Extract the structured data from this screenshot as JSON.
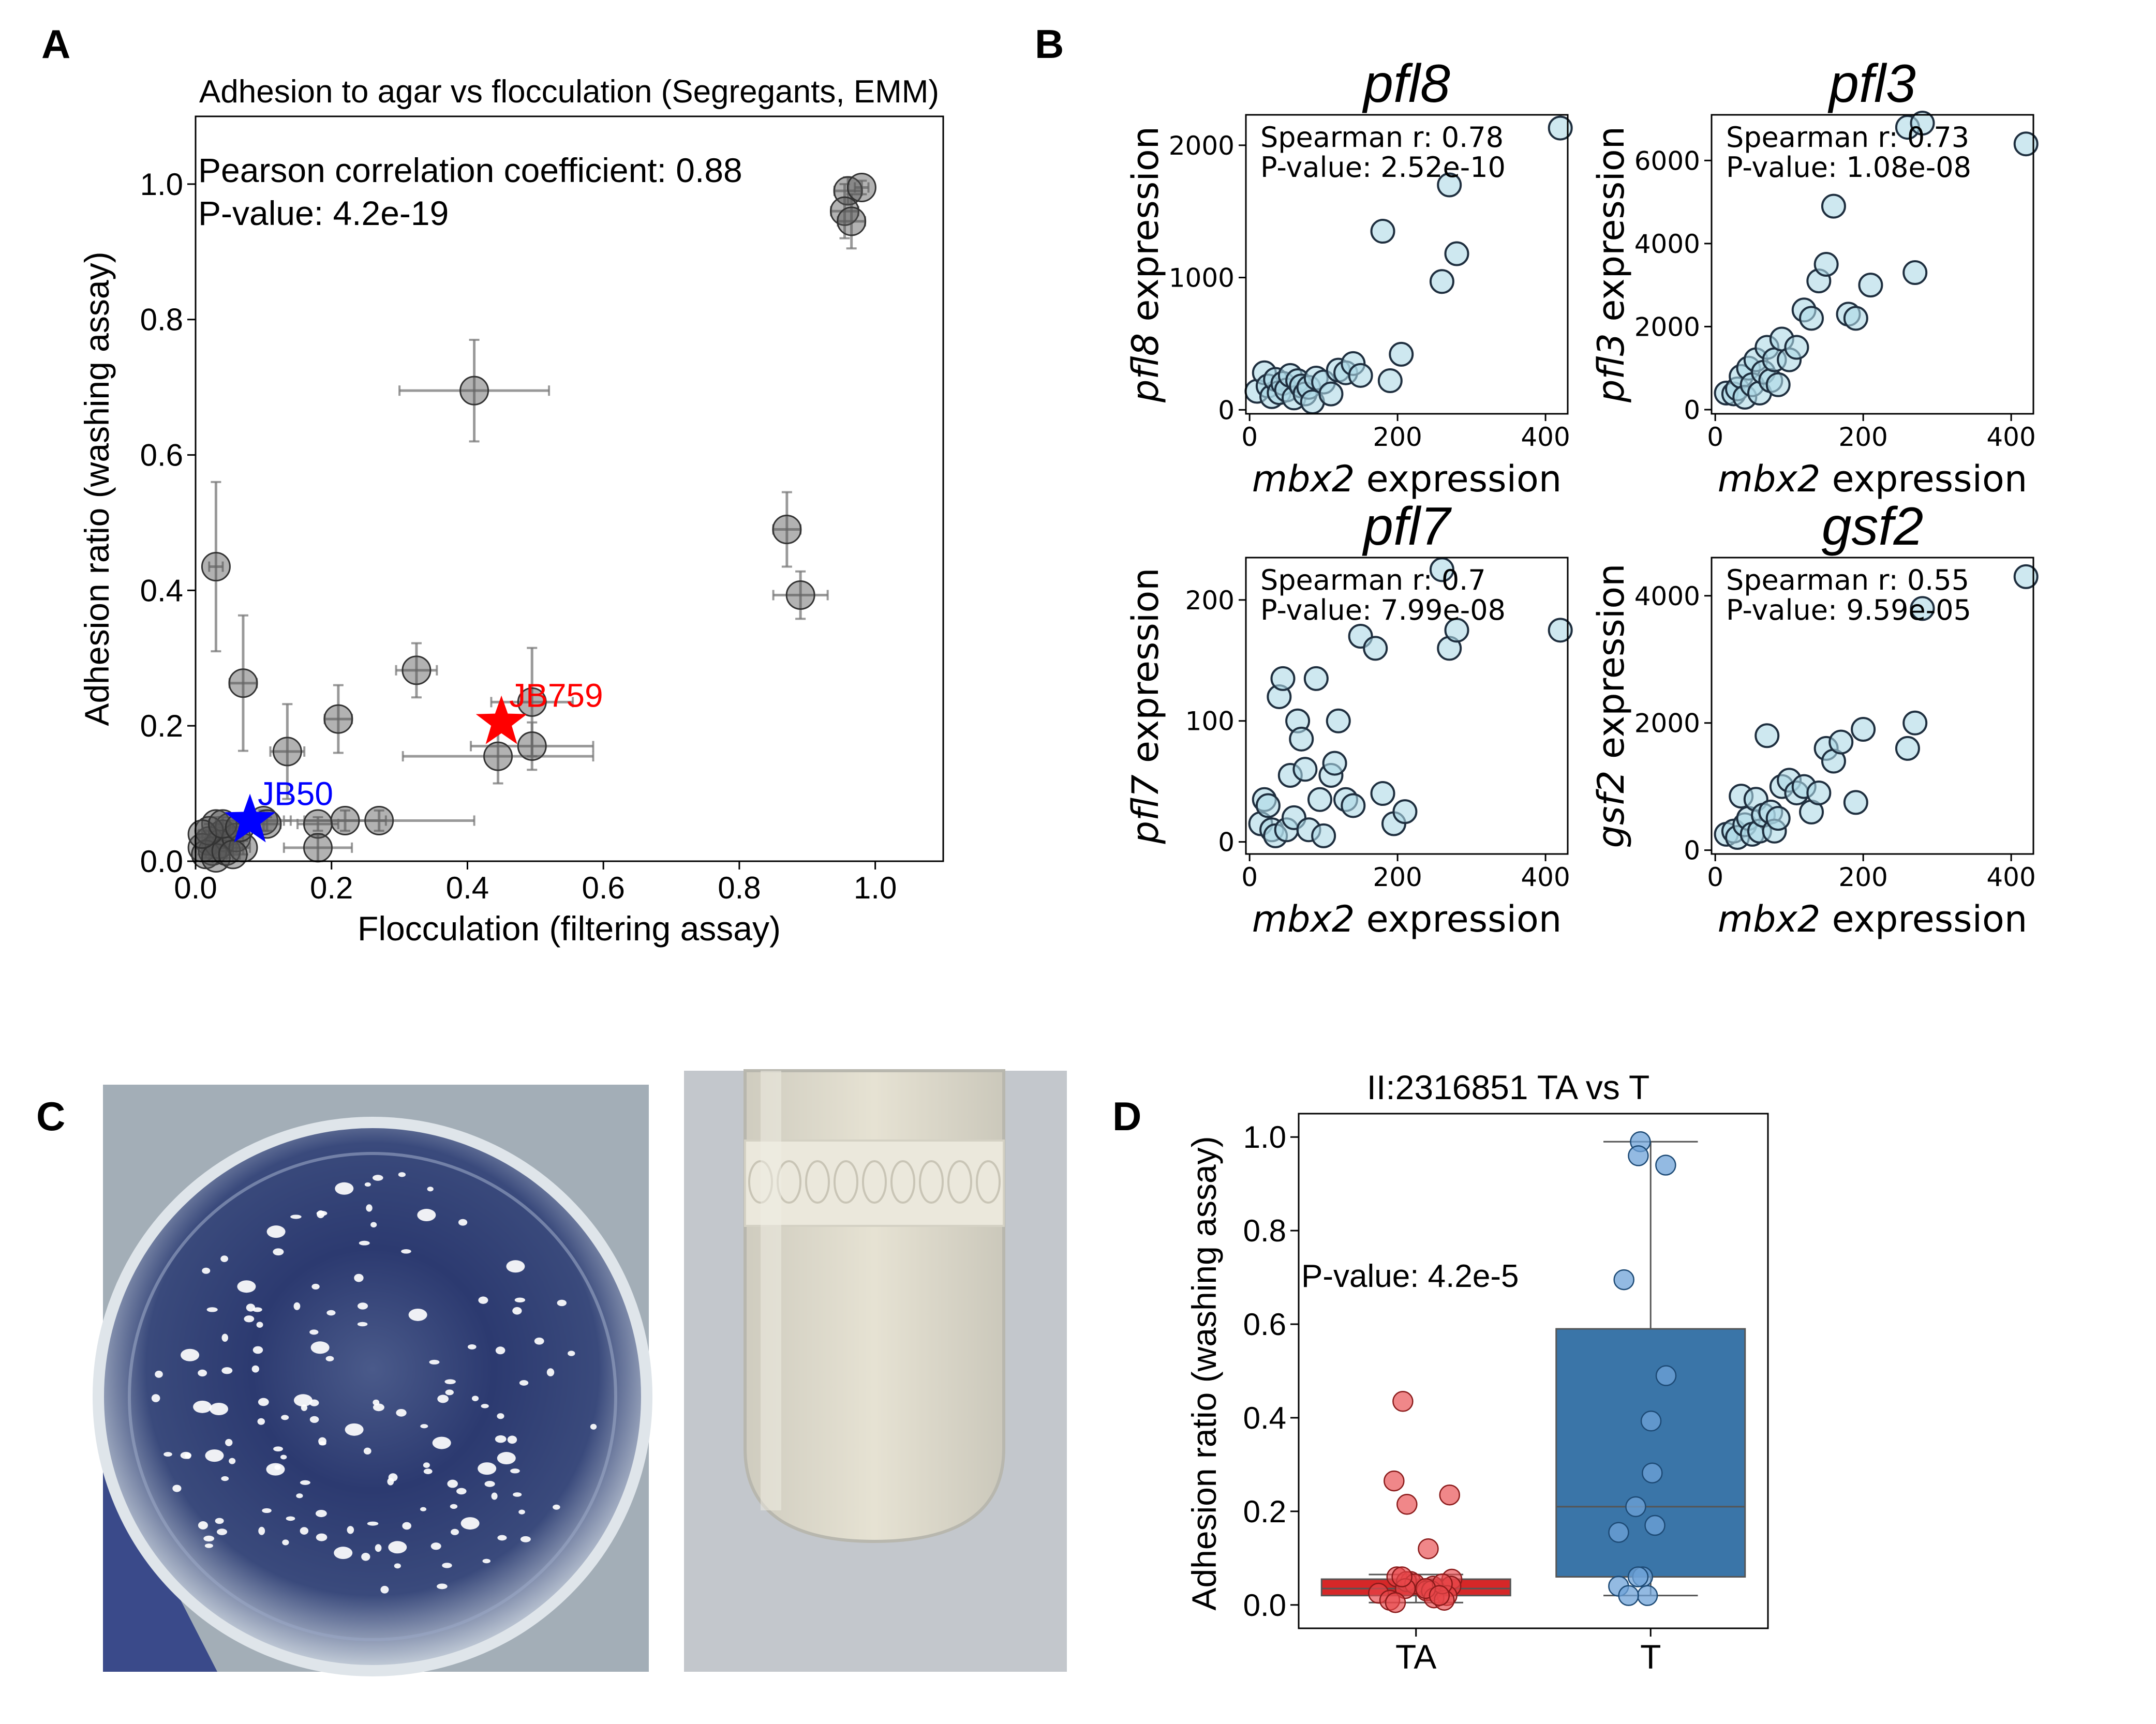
{
  "panels": {
    "A": {
      "letter": "A",
      "chart_data": {
        "type": "scatter",
        "title": "Adhesion to agar vs flocculation (Segregants, EMM)",
        "xlabel": "Flocculation (filtering assay)",
        "ylabel": "Adhesion ratio (washing assay)",
        "xlim": [
          0.0,
          1.1
        ],
        "ylim": [
          0.0,
          1.1
        ],
        "xticks": [
          "0.0",
          "0.2",
          "0.4",
          "0.6",
          "0.8",
          "1.0"
        ],
        "yticks": [
          "0.0",
          "0.2",
          "0.4",
          "0.6",
          "0.8",
          "1.0"
        ],
        "annotation_1": "Pearson correlation coefficient: 0.88",
        "annotation_2": "P-value: 4.2e-19",
        "points": [
          {
            "x": 0.96,
            "y": 0.99,
            "xerr": 0.02,
            "yerr": 0.02
          },
          {
            "x": 0.98,
            "y": 0.995,
            "xerr": 0.01,
            "yerr": 0.01
          },
          {
            "x": 0.955,
            "y": 0.96,
            "xerr": 0.02,
            "yerr": 0.04
          },
          {
            "x": 0.965,
            "y": 0.945,
            "xerr": 0.02,
            "yerr": 0.04
          },
          {
            "x": 0.41,
            "y": 0.695,
            "xerr": 0.11,
            "yerr": 0.075
          },
          {
            "x": 0.87,
            "y": 0.49,
            "xerr": 0.02,
            "yerr": 0.055
          },
          {
            "x": 0.89,
            "y": 0.393,
            "xerr": 0.04,
            "yerr": 0.035
          },
          {
            "x": 0.03,
            "y": 0.435,
            "xerr": 0.01,
            "yerr": 0.125
          },
          {
            "x": 0.07,
            "y": 0.263,
            "xerr": 0.02,
            "yerr": 0.1
          },
          {
            "x": 0.325,
            "y": 0.282,
            "xerr": 0.03,
            "yerr": 0.04
          },
          {
            "x": 0.21,
            "y": 0.21,
            "xerr": 0.02,
            "yerr": 0.05
          },
          {
            "x": 0.135,
            "y": 0.162,
            "xerr": 0.025,
            "yerr": 0.07
          },
          {
            "x": 0.445,
            "y": 0.155,
            "xerr": 0.14,
            "yerr": 0.04
          },
          {
            "x": 0.495,
            "y": 0.17,
            "xerr": 0.09,
            "yerr": 0.035
          },
          {
            "x": 0.495,
            "y": 0.235,
            "xerr": 0.06,
            "yerr": 0.08
          },
          {
            "x": 0.27,
            "y": 0.06,
            "xerr": 0.14,
            "yerr": 0.015
          },
          {
            "x": 0.22,
            "y": 0.06,
            "xerr": 0.06,
            "yerr": 0.015
          },
          {
            "x": 0.18,
            "y": 0.055,
            "xerr": 0.03,
            "yerr": 0.01
          },
          {
            "x": 0.1,
            "y": 0.06,
            "xerr": 0.04,
            "yerr": 0.015
          },
          {
            "x": 0.105,
            "y": 0.055,
            "xerr": 0.02,
            "yerr": 0.01
          },
          {
            "x": 0.18,
            "y": 0.02,
            "xerr": 0.05,
            "yerr": 0.02
          },
          {
            "x": 0.03,
            "y": 0.055,
            "xerr": 0.01,
            "yerr": 0.01
          },
          {
            "x": 0.04,
            "y": 0.04,
            "xerr": 0.01,
            "yerr": 0.01
          },
          {
            "x": 0.05,
            "y": 0.05,
            "xerr": 0.01,
            "yerr": 0.01
          },
          {
            "x": 0.02,
            "y": 0.03,
            "xerr": 0.01,
            "yerr": 0.01
          },
          {
            "x": 0.01,
            "y": 0.02,
            "xerr": 0.01,
            "yerr": 0.01
          },
          {
            "x": 0.025,
            "y": 0.015,
            "xerr": 0.01,
            "yerr": 0.01
          },
          {
            "x": 0.035,
            "y": 0.025,
            "xerr": 0.01,
            "yerr": 0.01
          },
          {
            "x": 0.015,
            "y": 0.01,
            "xerr": 0.005,
            "yerr": 0.005
          },
          {
            "x": 0.03,
            "y": 0.005,
            "xerr": 0.005,
            "yerr": 0.005
          },
          {
            "x": 0.045,
            "y": 0.015,
            "xerr": 0.01,
            "yerr": 0.01
          },
          {
            "x": 0.06,
            "y": 0.035,
            "xerr": 0.01,
            "yerr": 0.01
          },
          {
            "x": 0.07,
            "y": 0.02,
            "xerr": 0.01,
            "yerr": 0.01
          },
          {
            "x": 0.055,
            "y": 0.01,
            "xerr": 0.01,
            "yerr": 0.01
          },
          {
            "x": 0.02,
            "y": 0.045,
            "xerr": 0.01,
            "yerr": 0.01
          },
          {
            "x": 0.01,
            "y": 0.04,
            "xerr": 0.005,
            "yerr": 0.005
          },
          {
            "x": 0.04,
            "y": 0.055,
            "xerr": 0.01,
            "yerr": 0.01
          },
          {
            "x": 0.065,
            "y": 0.05,
            "xerr": 0.01,
            "yerr": 0.01
          }
        ],
        "highlights": [
          {
            "label": "JB759",
            "x": 0.45,
            "y": 0.205,
            "color": "#ff0000"
          },
          {
            "label": "JB50",
            "x": 0.08,
            "y": 0.06,
            "color": "#0000ff"
          }
        ]
      }
    },
    "B": {
      "letter": "B",
      "chart_data": [
        {
          "type": "scatter",
          "title": "pfl8",
          "ylabel_gene": "pfl8",
          "ylabel_rest": " expression",
          "xlabel_gene": "mbx2",
          "xlabel_rest": " expression",
          "xlim": [
            -5,
            430
          ],
          "ylim": [
            -30,
            2230
          ],
          "xticks": [
            0,
            200,
            400
          ],
          "yticks": [
            0,
            1000,
            2000
          ],
          "stat1": "Spearman r: 0.78",
          "stat2": "P-value: 2.52e-10",
          "x": [
            10,
            20,
            25,
            30,
            35,
            40,
            45,
            50,
            55,
            60,
            65,
            70,
            75,
            80,
            85,
            90,
            100,
            110,
            120,
            130,
            140,
            150,
            180,
            190,
            205,
            260,
            270,
            280,
            420
          ],
          "y": [
            140,
            280,
            180,
            100,
            230,
            130,
            200,
            150,
            260,
            90,
            220,
            180,
            120,
            170,
            60,
            240,
            210,
            120,
            300,
            280,
            350,
            260,
            1350,
            220,
            420,
            970,
            1700,
            1180,
            2130
          ]
        },
        {
          "type": "scatter",
          "title": "pfl3",
          "ylabel_gene": "pfl3",
          "ylabel_rest": " expression",
          "xlabel_gene": "mbx2",
          "xlabel_rest": " expression",
          "xlim": [
            -5,
            430
          ],
          "ylim": [
            -100,
            7100
          ],
          "xticks": [
            0,
            200,
            400
          ],
          "yticks": [
            0,
            2000,
            4000,
            6000
          ],
          "stat1": "Spearman r: 0.73",
          "stat2": "P-value: 1.08e-08",
          "x": [
            15,
            25,
            30,
            35,
            40,
            45,
            50,
            55,
            60,
            65,
            70,
            75,
            80,
            85,
            90,
            100,
            110,
            120,
            130,
            140,
            150,
            160,
            180,
            190,
            210,
            260,
            270,
            280,
            420
          ],
          "y": [
            400,
            380,
            500,
            800,
            300,
            1000,
            600,
            1200,
            400,
            900,
            1500,
            700,
            1200,
            600,
            1700,
            1200,
            1500,
            2400,
            2200,
            3100,
            3500,
            4900,
            2300,
            2200,
            3000,
            6800,
            3300,
            6900,
            6400
          ]
        },
        {
          "type": "scatter",
          "title": "pfl7",
          "ylabel_gene": "pfl7",
          "ylabel_rest": " expression",
          "xlabel_gene": "mbx2",
          "xlabel_rest": " expression",
          "xlim": [
            -5,
            430
          ],
          "ylim": [
            -10,
            235
          ],
          "xticks": [
            0,
            200,
            400
          ],
          "yticks": [
            0,
            100,
            200
          ],
          "stat1": "Spearman r: 0.7",
          "stat2": "P-value: 7.99e-08",
          "x": [
            15,
            20,
            25,
            30,
            35,
            40,
            45,
            50,
            55,
            60,
            65,
            70,
            75,
            80,
            90,
            95,
            100,
            110,
            115,
            120,
            130,
            140,
            150,
            170,
            180,
            195,
            210,
            260,
            270,
            280,
            420
          ],
          "y": [
            15,
            35,
            30,
            10,
            5,
            120,
            135,
            10,
            55,
            20,
            100,
            85,
            60,
            10,
            135,
            35,
            5,
            55,
            65,
            100,
            35,
            30,
            170,
            160,
            40,
            15,
            25,
            225,
            160,
            175,
            175
          ]
        },
        {
          "type": "scatter",
          "title": "gsf2",
          "ylabel_gene": "gsf2",
          "ylabel_rest": " expression",
          "xlabel_gene": "mbx2",
          "xlabel_rest": " expression",
          "xlim": [
            -5,
            430
          ],
          "ylim": [
            -60,
            4600
          ],
          "xticks": [
            0,
            200,
            400
          ],
          "yticks": [
            0,
            2000,
            4000
          ],
          "stat1": "Spearman r: 0.55",
          "stat2": "P-value: 9.59e-05",
          "x": [
            15,
            25,
            30,
            35,
            40,
            45,
            50,
            55,
            60,
            65,
            70,
            75,
            80,
            85,
            90,
            100,
            110,
            120,
            130,
            140,
            150,
            160,
            170,
            190,
            200,
            260,
            270,
            280,
            420
          ],
          "y": [
            250,
            300,
            200,
            850,
            400,
            500,
            250,
            800,
            300,
            550,
            1800,
            600,
            300,
            500,
            1000,
            1100,
            900,
            1000,
            600,
            900,
            1600,
            1400,
            1700,
            750,
            1900,
            1600,
            2000,
            3800,
            4300
          ]
        }
      ]
    },
    "C": {
      "letter": "C"
    },
    "D": {
      "letter": "D",
      "chart_data": {
        "type": "box",
        "title": "II:2316851 TA vs T",
        "ylabel": "Adhesion ratio (washing assay)",
        "categories": [
          "TA",
          "T"
        ],
        "ylim": [
          -0.05,
          1.05
        ],
        "yticks": [
          "0.0",
          "0.2",
          "0.4",
          "0.6",
          "0.8",
          "1.0"
        ],
        "annotation": "P-value: 4.2e-5",
        "boxes": [
          {
            "q1": 0.02,
            "median": 0.035,
            "q3": 0.055,
            "whisker_low": 0.005,
            "whisker_high": 0.065,
            "color": "#d62728"
          },
          {
            "q1": 0.06,
            "median": 0.21,
            "q3": 0.59,
            "whisker_low": 0.02,
            "whisker_high": 0.99,
            "color": "#3a75a8"
          }
        ],
        "points_TA": [
          0.435,
          0.265,
          0.235,
          0.215,
          0.12,
          0.06,
          0.055,
          0.05,
          0.05,
          0.045,
          0.04,
          0.04,
          0.035,
          0.03,
          0.03,
          0.025,
          0.02,
          0.015,
          0.01,
          0.01,
          0.005,
          0.06,
          0.045,
          0.035,
          0.02
        ],
        "points_T": [
          0.99,
          0.96,
          0.94,
          0.695,
          0.49,
          0.393,
          0.282,
          0.21,
          0.17,
          0.155,
          0.06,
          0.06,
          0.04,
          0.02,
          0.02
        ]
      }
    }
  }
}
